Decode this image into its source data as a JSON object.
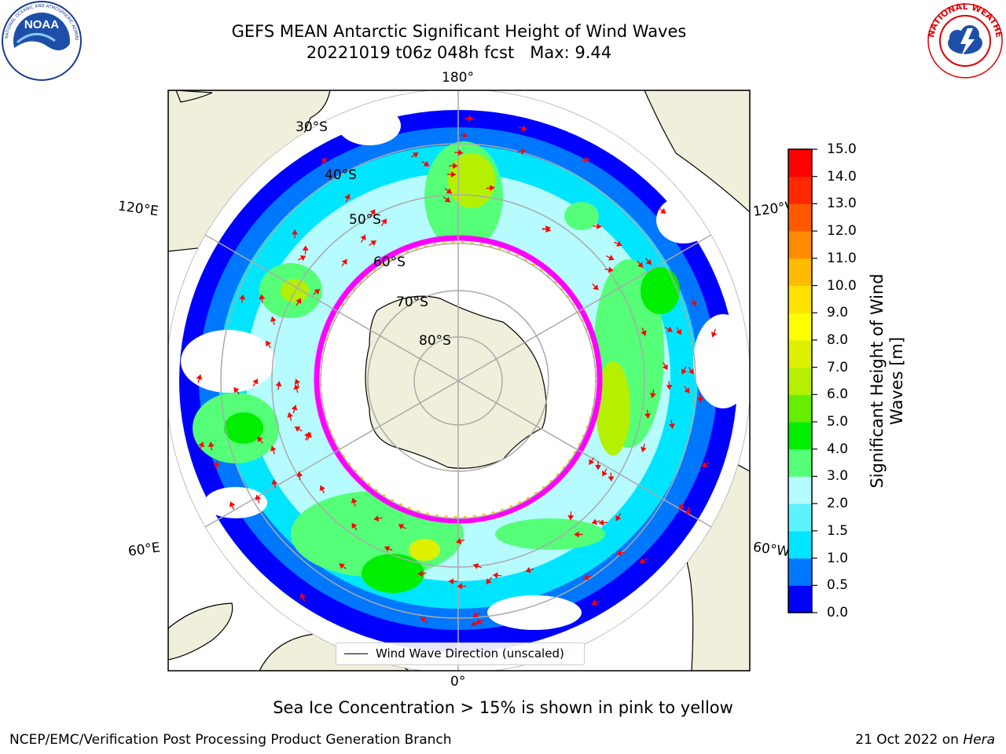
{
  "title": {
    "line1": "GEFS MEAN Antarctic Significant Height of Wind Waves",
    "line2": "20221019 t06z 048h fcst   Max: 9.44"
  },
  "logos": {
    "noaa_text": "NOAA",
    "noaa_ring": "NATIONAL OCEANIC AND ATMOSPHERIC ADMINISTRATION · U.S. DEPARTMENT OF COMMERCE",
    "nws_ring": "NATIONAL WEATHER SERVICE"
  },
  "map": {
    "projection": "south-polar-stereographic",
    "longitude_labels": {
      "top": "180°",
      "bottom": "0°",
      "left_upper": "120°E",
      "left_lower": "60°E",
      "right_upper": "120°W",
      "right_lower": "60°W"
    },
    "latitude_labels": [
      "30°S",
      "40°S",
      "50°S",
      "60°S",
      "70°S",
      "80°S"
    ],
    "legend_label": "Wind Wave Direction (unscaled)",
    "arrow_color": "#ff0000",
    "land_color": "#efefdb",
    "ocean_color": "#ffffff",
    "sea_ice_colors": [
      "#ff00ff",
      "#ffc800"
    ]
  },
  "colorbar": {
    "label": "Significant Height of Wind Waves [m]",
    "label_line1": "Significant Height of Wind",
    "label_line2": "Waves [m]",
    "ticks": [
      "15.0",
      "14.0",
      "13.0",
      "12.0",
      "11.0",
      "10.0",
      "9.0",
      "8.0",
      "7.0",
      "6.0",
      "5.0",
      "4.0",
      "3.0",
      "2.0",
      "1.5",
      "1.0",
      "0.5",
      "0.0"
    ],
    "colors_bottom_to_top": [
      "#0000ff",
      "#0077ff",
      "#00e5ff",
      "#5cf3ff",
      "#b5fbff",
      "#55ff77",
      "#00ee00",
      "#66ee00",
      "#b5f000",
      "#ddf000",
      "#ffff00",
      "#ffe100",
      "#ffbb00",
      "#ff8c00",
      "#ff5a00",
      "#ff2800",
      "#ff0000"
    ]
  },
  "footer": {
    "sea_ice_note": "Sea Ice Concentration > 15% is shown in pink to yellow",
    "left": "NCEP/EMC/Verification Post Processing Product Generation Branch",
    "right_prefix": "21 Oct 2022 on ",
    "right_machine": "Hera"
  }
}
